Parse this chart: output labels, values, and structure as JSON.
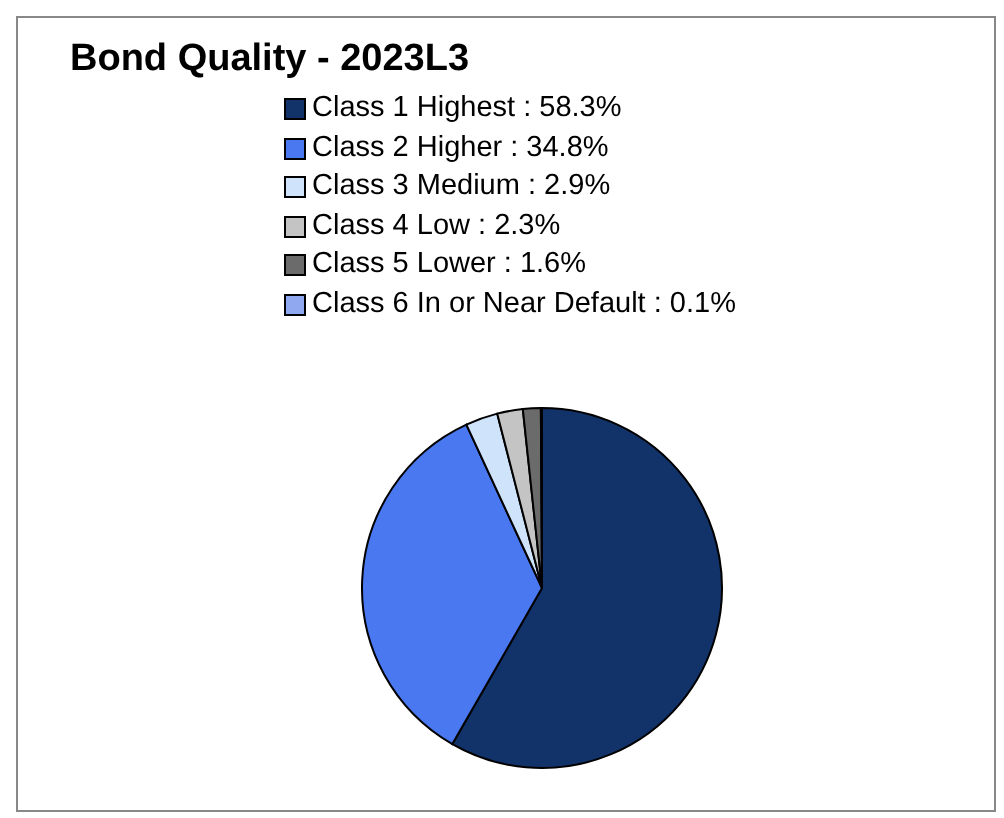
{
  "chart_data": {
    "type": "pie",
    "title": "Bond Quality - 2023L3",
    "categories": [
      "Class 1 Highest : 58.3%",
      "Class 2 Higher : 34.8%",
      "Class 3 Medium : 2.9%",
      "Class 4 Low : 2.3%",
      "Class 5 Lower : 1.6%",
      "Class 6 In or Near Default : 0.1%"
    ],
    "values": [
      58.3,
      34.8,
      2.9,
      2.3,
      1.6,
      0.1
    ],
    "colors": [
      "#12336a",
      "#4a78f0",
      "#cfe3fb",
      "#c4c4c4",
      "#6b6b6b",
      "#8fa8f0"
    ],
    "legend": "top"
  }
}
